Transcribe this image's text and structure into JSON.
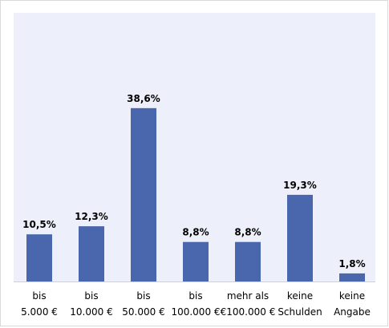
{
  "chart_data": {
    "type": "bar",
    "categories": [
      [
        "bis",
        "5.000 €"
      ],
      [
        "bis",
        "10.000 €"
      ],
      [
        "bis",
        "50.000 €"
      ],
      [
        "bis",
        "100.000 €"
      ],
      [
        "mehr als",
        "€100.000 €"
      ],
      [
        "keine",
        "Schulden"
      ],
      [
        "keine",
        "Angabe"
      ]
    ],
    "values": [
      10.5,
      12.3,
      38.6,
      8.8,
      8.8,
      19.3,
      1.8
    ],
    "data_labels": [
      "10,5%",
      "12,3%",
      "38,6%",
      "8,8%",
      "8,8%",
      "19,3%",
      "1,8%"
    ],
    "unit": "%",
    "ylim": [
      0,
      45
    ],
    "grid": false,
    "legend": "none",
    "colors": {
      "bar": "#4a67ad",
      "plot_background": "#edf0fa",
      "baseline": "#d0d0d0",
      "frame": "#d9d9d9"
    }
  }
}
